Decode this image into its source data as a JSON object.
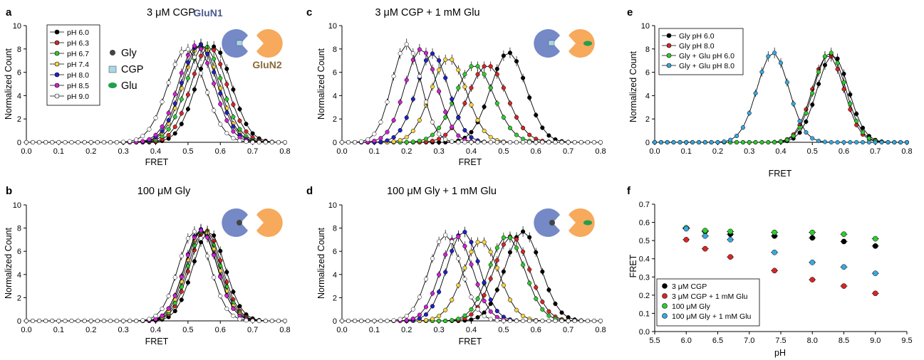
{
  "colors": {
    "ph6": "#000000",
    "ph63": "#d62626",
    "ph67": "#2ecc2e",
    "ph74": "#f5d442",
    "ph80": "#2121c6",
    "ph85": "#d21fd2",
    "ph90": "#ffffff",
    "glun1": "#7489c6",
    "glun2": "#f7a95c",
    "gly": "#444444",
    "cgp": "#a8d8e8",
    "glu": "#21a04a",
    "f_cgp": "#000000",
    "f_cgp_glu": "#d62626",
    "f_gly": "#2ecc2e",
    "f_gly_glu": "#39a8df",
    "e_ph6": "#000000",
    "e_ph8": "#d62626",
    "e_glu6": "#2ecc2e",
    "e_glu8": "#39a8df"
  },
  "xticks": [
    "0.0",
    "0.1",
    "0.2",
    "0.3",
    "0.4",
    "0.5",
    "0.6",
    "0.7",
    "0.8"
  ],
  "yticks": [
    "0",
    "2",
    "4",
    "6",
    "8",
    "10"
  ],
  "f_xticks": [
    "5.5",
    "6.0",
    "6.5",
    "7.0",
    "7.5",
    "8.0",
    "8.5",
    "9.0",
    "9.5"
  ],
  "f_yticks": [
    "0.0",
    "0.1",
    "0.2",
    "0.3",
    "0.4",
    "0.5",
    "0.6",
    "0.7"
  ],
  "xlabel": "FRET",
  "ylabel": "Normalized Count",
  "f_xlabel": "pH",
  "f_ylabel": "FRET",
  "icon_labels": {
    "glun1": "GluN1",
    "glun2": "GluN2"
  },
  "symbol_legend": [
    "Gly",
    "CGP",
    "Glu"
  ],
  "panels": [
    {
      "id": "a",
      "title": "3 μM CGP"
    },
    {
      "id": "b",
      "title": "100 μM Gly"
    },
    {
      "id": "c",
      "title": "3 μM CGP + 1 mM Glu"
    },
    {
      "id": "d",
      "title": "100 μM Gly + 1 mM Glu"
    },
    {
      "id": "e",
      "title": ""
    },
    {
      "id": "f",
      "title": ""
    }
  ],
  "ph_legend": [
    "pH 6.0",
    "pH 6.3",
    "pH 6.7",
    "pH 7.4",
    "pH 8.0",
    "pH 8.5",
    "pH 9.0"
  ],
  "e_legend": [
    "Gly pH 6.0",
    "Gly pH 8.0",
    "Gly + Glu pH 6.0",
    "Gly + Glu pH 8.0"
  ],
  "f_legend": [
    "3 μM CGP",
    "3 μM CGP + 1 mM Glu",
    "100 μM Gly",
    "100 μM Gly + 1 mM Glu"
  ],
  "chart_data": [
    {
      "panel": "a",
      "type": "line",
      "title": "3 μM CGP",
      "xlabel": "FRET",
      "ylabel": "Normalized Count",
      "xlim": [
        0,
        0.8
      ],
      "ylim": [
        0,
        10
      ],
      "series": [
        {
          "name": "pH 6.0",
          "color": "#000000",
          "peak": 0.58,
          "height": 8.2,
          "width": 0.055
        },
        {
          "name": "pH 6.3",
          "color": "#d62626",
          "peak": 0.565,
          "height": 8.2,
          "width": 0.055
        },
        {
          "name": "pH 6.7",
          "color": "#2ecc2e",
          "peak": 0.55,
          "height": 8.3,
          "width": 0.055
        },
        {
          "name": "pH 7.4",
          "color": "#f5d442",
          "peak": 0.54,
          "height": 8.4,
          "width": 0.055
        },
        {
          "name": "pH 8.0",
          "color": "#2121c6",
          "peak": 0.535,
          "height": 8.4,
          "width": 0.055
        },
        {
          "name": "pH 8.5",
          "color": "#d21fd2",
          "peak": 0.525,
          "height": 8.3,
          "width": 0.055
        },
        {
          "name": "pH 9.0",
          "color": "#ffffff",
          "peak": 0.495,
          "height": 8.0,
          "width": 0.058
        }
      ]
    },
    {
      "panel": "b",
      "type": "line",
      "title": "100 μM Gly",
      "xlabel": "FRET",
      "ylabel": "Normalized Count",
      "xlim": [
        0,
        0.8
      ],
      "ylim": [
        0,
        10
      ],
      "series": [
        {
          "name": "pH 6.0",
          "color": "#000000",
          "peak": 0.565,
          "height": 7.7,
          "width": 0.05
        },
        {
          "name": "pH 6.3",
          "color": "#d62626",
          "peak": 0.555,
          "height": 7.8,
          "width": 0.05
        },
        {
          "name": "pH 6.7",
          "color": "#2ecc2e",
          "peak": 0.55,
          "height": 7.8,
          "width": 0.05
        },
        {
          "name": "pH 7.4",
          "color": "#f5d442",
          "peak": 0.545,
          "height": 7.9,
          "width": 0.05
        },
        {
          "name": "pH 8.0",
          "color": "#2121c6",
          "peak": 0.54,
          "height": 7.9,
          "width": 0.05
        },
        {
          "name": "pH 8.5",
          "color": "#d21fd2",
          "peak": 0.54,
          "height": 7.8,
          "width": 0.05
        },
        {
          "name": "pH 9.0",
          "color": "#ffffff",
          "peak": 0.52,
          "height": 7.7,
          "width": 0.05
        }
      ]
    },
    {
      "panel": "c",
      "type": "line",
      "title": "3 μM CGP + 1 mM Glu",
      "xlabel": "FRET",
      "ylabel": "Normalized Count",
      "xlim": [
        0,
        0.8
      ],
      "ylim": [
        0,
        10
      ],
      "series": [
        {
          "name": "pH 6.0",
          "color": "#000000",
          "peak": 0.515,
          "height": 7.7,
          "width": 0.055
        },
        {
          "name": "pH 6.3",
          "color": "#d62626",
          "peak": 0.45,
          "height": 6.6,
          "width": 0.06
        },
        {
          "name": "pH 6.7",
          "color": "#2ecc2e",
          "peak": 0.41,
          "height": 6.6,
          "width": 0.06
        },
        {
          "name": "pH 7.4",
          "color": "#f5d442",
          "peak": 0.33,
          "height": 7.2,
          "width": 0.055
        },
        {
          "name": "pH 8.0",
          "color": "#2121c6",
          "peak": 0.28,
          "height": 7.6,
          "width": 0.05
        },
        {
          "name": "pH 8.5",
          "color": "#d21fd2",
          "peak": 0.245,
          "height": 8.0,
          "width": 0.05
        },
        {
          "name": "pH 9.0",
          "color": "#ffffff",
          "peak": 0.2,
          "height": 8.4,
          "width": 0.045
        }
      ]
    },
    {
      "panel": "d",
      "type": "line",
      "title": "100 μM Gly + 1 mM Glu",
      "xlabel": "FRET",
      "ylabel": "Normalized Count",
      "xlim": [
        0,
        0.8
      ],
      "ylim": [
        0,
        10
      ],
      "series": [
        {
          "name": "pH 6.0",
          "color": "#000000",
          "peak": 0.56,
          "height": 7.7,
          "width": 0.055
        },
        {
          "name": "pH 6.3",
          "color": "#d62626",
          "peak": 0.525,
          "height": 7.3,
          "width": 0.055
        },
        {
          "name": "pH 6.7",
          "color": "#2ecc2e",
          "peak": 0.51,
          "height": 7.3,
          "width": 0.055
        },
        {
          "name": "pH 7.4",
          "color": "#f5d442",
          "peak": 0.43,
          "height": 6.9,
          "width": 0.055
        },
        {
          "name": "pH 8.0",
          "color": "#2121c6",
          "peak": 0.375,
          "height": 7.7,
          "width": 0.05
        },
        {
          "name": "pH 8.5",
          "color": "#d21fd2",
          "peak": 0.355,
          "height": 7.3,
          "width": 0.05
        },
        {
          "name": "pH 9.0",
          "color": "#ffffff",
          "peak": 0.32,
          "height": 7.4,
          "width": 0.05
        }
      ]
    },
    {
      "panel": "e",
      "type": "line",
      "xlabel": "FRET",
      "ylabel": "Normalized Count",
      "xlim": [
        0,
        0.8
      ],
      "ylim": [
        0,
        10
      ],
      "series": [
        {
          "name": "Gly pH 6.0",
          "color": "#000000",
          "peak": 0.565,
          "height": 7.5,
          "width": 0.05
        },
        {
          "name": "Gly pH 8.0",
          "color": "#d62626",
          "peak": 0.55,
          "height": 7.5,
          "width": 0.05
        },
        {
          "name": "Gly + Glu pH 6.0",
          "color": "#2ecc2e",
          "peak": 0.555,
          "height": 7.7,
          "width": 0.05
        },
        {
          "name": "Gly + Glu pH 8.0",
          "color": "#39a8df",
          "peak": 0.375,
          "height": 7.7,
          "width": 0.05
        }
      ]
    },
    {
      "panel": "f",
      "type": "scatter",
      "xlabel": "pH",
      "ylabel": "FRET",
      "xlim": [
        5.5,
        9.5
      ],
      "ylim": [
        0,
        0.7
      ],
      "x": [
        6.0,
        6.3,
        6.7,
        7.4,
        8.0,
        8.5,
        9.0
      ],
      "series": [
        {
          "name": "3 μM CGP",
          "color": "#000000",
          "values": [
            0.57,
            0.55,
            0.535,
            0.525,
            0.515,
            0.495,
            0.47
          ]
        },
        {
          "name": "3 μM CGP + 1 mM Glu",
          "color": "#d62626",
          "values": [
            0.505,
            0.455,
            0.41,
            0.335,
            0.285,
            0.25,
            0.21
          ]
        },
        {
          "name": "100 μM Gly",
          "color": "#2ecc2e",
          "values": [
            0.57,
            0.555,
            0.55,
            0.545,
            0.545,
            0.535,
            0.51
          ]
        },
        {
          "name": "100 μM Gly + 1 mM Glu",
          "color": "#39a8df",
          "values": [
            0.565,
            0.525,
            0.505,
            0.435,
            0.38,
            0.355,
            0.32
          ]
        }
      ]
    }
  ]
}
